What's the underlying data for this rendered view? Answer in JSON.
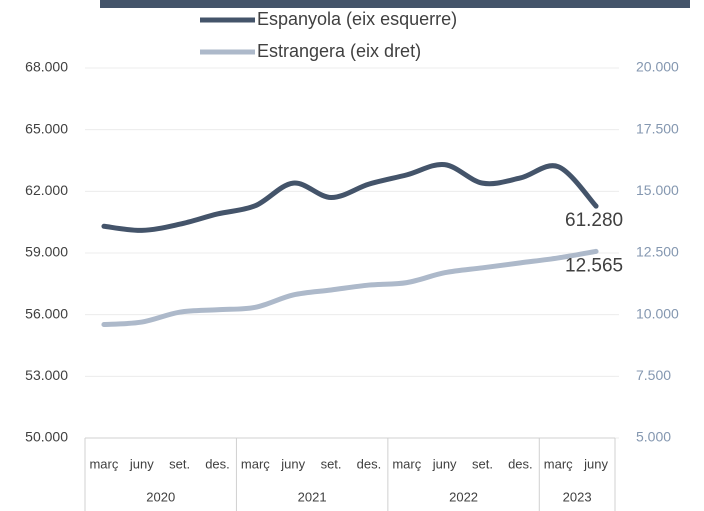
{
  "chart_data": {
    "type": "line",
    "groups": [
      {
        "label": "2020",
        "categories": [
          "març",
          "juny",
          "set.",
          "des."
        ]
      },
      {
        "label": "2021",
        "categories": [
          "març",
          "juny",
          "set.",
          "des."
        ]
      },
      {
        "label": "2022",
        "categories": [
          "març",
          "juny",
          "set.",
          "des."
        ]
      },
      {
        "label": "2023",
        "categories": [
          "març",
          "juny"
        ]
      }
    ],
    "series": [
      {
        "name": "Espanyola (eix esquerre)",
        "color": "#44546a",
        "values": [
          60300,
          60100,
          60400,
          60900,
          61300,
          62400,
          61700,
          62350,
          62800,
          63300,
          62400,
          62650,
          63200,
          61280
        ],
        "value_labels": [
          null,
          null,
          null,
          null,
          null,
          null,
          null,
          null,
          null,
          null,
          null,
          null,
          null,
          "61.280"
        ]
      },
      {
        "name": "Estrangera (eix dret)",
        "color": "#adb9ca",
        "axis": "y2",
        "values": [
          9600,
          9700,
          10100,
          10200,
          10300,
          10800,
          11000,
          11200,
          11300,
          11700,
          11900,
          12100,
          12300,
          12565
        ],
        "value_labels": [
          null,
          null,
          null,
          null,
          null,
          null,
          null,
          null,
          null,
          null,
          null,
          null,
          null,
          "12.565"
        ]
      }
    ],
    "ylim": [
      50000,
      68000
    ],
    "yticks": [
      {
        "value": 50000,
        "label": "50.000"
      },
      {
        "value": 53000,
        "label": "53.000"
      },
      {
        "value": 56000,
        "label": "56.000"
      },
      {
        "value": 59000,
        "label": "59.000"
      },
      {
        "value": 62000,
        "label": "62.000"
      },
      {
        "value": 65000,
        "label": "65.000"
      },
      {
        "value": 68000,
        "label": "68.000"
      }
    ],
    "y2lim": [
      5000,
      20000
    ],
    "y2ticks": [
      {
        "value": 5000,
        "label": "5.000"
      },
      {
        "value": 7500,
        "label": "7.500"
      },
      {
        "value": 10000,
        "label": "10.000"
      },
      {
        "value": 12500,
        "label": "12.500"
      },
      {
        "value": 15000,
        "label": "15.000"
      },
      {
        "value": 17500,
        "label": "17.500"
      },
      {
        "value": 20000,
        "label": "20.000"
      }
    ],
    "grid": true
  }
}
